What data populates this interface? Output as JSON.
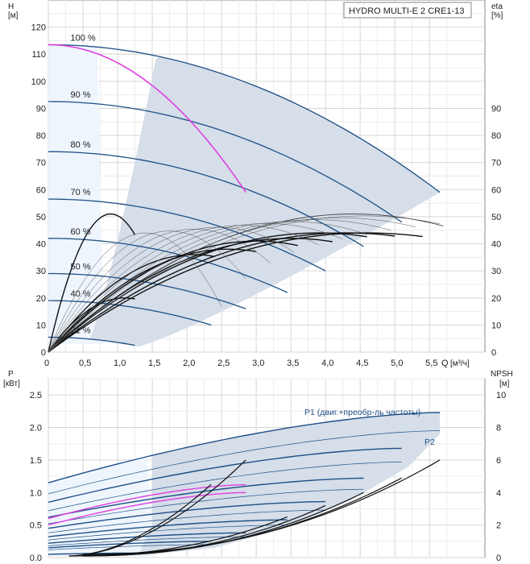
{
  "chart_data": [
    {
      "type": "line",
      "title": "HYDRO MULTI-E 2 CRE1-13",
      "ylabel": "H",
      "ylabel_unit": "[м]",
      "y2label": "eta",
      "y2label_unit": "[%]",
      "xlabel": "Q",
      "xlabel_unit": "[м³/ч]",
      "xlim": [
        0,
        6.3
      ],
      "ylim": [
        0,
        130
      ],
      "x_ticks": [
        0,
        0.5,
        1.0,
        1.5,
        2.0,
        2.5,
        3.0,
        3.5,
        4.0,
        4.5,
        5.0,
        5.5
      ],
      "x_tick_labels": [
        "0",
        "0,5",
        "1,0",
        "1,5",
        "2,0",
        "2,5",
        "3,0",
        "3,5",
        "4,0",
        "4,5",
        "5,0",
        "5,5"
      ],
      "y_ticks": [
        0,
        10,
        20,
        30,
        40,
        50,
        60,
        70,
        80,
        90,
        100,
        110,
        120
      ],
      "y_tick_labels": [
        "0",
        "10",
        "20",
        "30",
        "40",
        "50",
        "60",
        "70",
        "80",
        "90",
        "100",
        "110",
        "120"
      ],
      "y2_ticks": [
        0,
        10,
        20,
        30,
        40,
        50,
        60,
        70,
        80,
        90
      ],
      "y2_tick_labels": [
        "0",
        "10",
        "20",
        "30",
        "40",
        "50",
        "60",
        "70",
        "80",
        "90"
      ],
      "grid": true,
      "speed_curves": [
        {
          "label": "100 %",
          "h0": 113.5,
          "qmax": 5.65,
          "hend": 59
        },
        {
          "label": "90 %",
          "h0": 92.5,
          "qmax": 5.1,
          "hend": 48
        },
        {
          "label": "80 %",
          "h0": 74,
          "qmax": 4.55,
          "hend": 39
        },
        {
          "label": "70 %",
          "h0": 56.5,
          "qmax": 4.0,
          "hend": 30
        },
        {
          "label": "60 %",
          "h0": 42,
          "qmax": 3.45,
          "hend": 22
        },
        {
          "label": "50 %",
          "h0": 29,
          "qmax": 2.85,
          "hend": 16
        },
        {
          "label": "40 %",
          "h0": 19,
          "qmax": 2.35,
          "hend": 10
        },
        {
          "label": "21 %",
          "h0": 5.5,
          "qmax": 1.25,
          "hend": 2.5
        }
      ],
      "duty_curve": {
        "h0": 113.5,
        "qmax": 2.85,
        "hend": 59
      },
      "efficiency_curves": [
        {
          "qmax": 1.25,
          "peak": 51,
          "qpeak": 0.9
        },
        {
          "qmax": 1.25,
          "peak": 20,
          "qpeak": 1.1
        },
        {
          "qmax": 5.7,
          "peak": 51,
          "qpeak": 4.4
        },
        {
          "qmax": 5.4,
          "peak": 44,
          "qpeak": 4.6
        },
        {
          "qmax": 5.0,
          "peak": 44,
          "qpeak": 4.3
        },
        {
          "qmax": 4.6,
          "peak": 44,
          "qpeak": 3.9
        },
        {
          "qmax": 4.1,
          "peak": 42,
          "qpeak": 3.5
        },
        {
          "qmax": 3.6,
          "peak": 41,
          "qpeak": 3.0
        },
        {
          "qmax": 3.0,
          "peak": 38,
          "qpeak": 2.6
        },
        {
          "qmax": 2.4,
          "peak": 36,
          "qpeak": 2.1
        }
      ]
    },
    {
      "type": "line",
      "ylabel": "P",
      "ylabel_unit": "[кВт]",
      "y2label": "NPSH",
      "y2label_unit": "[м]",
      "xlim": [
        0,
        6.3
      ],
      "ylim": [
        0,
        2.75
      ],
      "y2lim": [
        0,
        11
      ],
      "y_ticks": [
        0,
        0.5,
        1.0,
        1.5,
        2.0,
        2.5
      ],
      "y_tick_labels": [
        "0.0",
        "0.5",
        "1.0",
        "1.5",
        "2.0",
        "2.5"
      ],
      "y2_ticks": [
        0,
        2,
        4,
        6,
        8,
        10
      ],
      "y2_tick_labels": [
        "0",
        "2",
        "4",
        "6",
        "8",
        "10"
      ],
      "grid": true,
      "annotations": [
        "P1 (двиг.+преобр-ль частоты)",
        "P2"
      ],
      "power_curves": [
        {
          "p0": 1.15,
          "pend": 2.23,
          "qmax": 5.65
        },
        {
          "p0": 0.98,
          "pend": 1.95,
          "qmax": 5.65
        },
        {
          "p0": 0.85,
          "pend": 1.68,
          "qmax": 5.1
        },
        {
          "p0": 0.72,
          "pend": 1.47,
          "qmax": 5.1
        },
        {
          "p0": 0.62,
          "pend": 1.22,
          "qmax": 4.55
        },
        {
          "p0": 0.52,
          "pend": 1.05,
          "qmax": 4.55
        },
        {
          "p0": 0.45,
          "pend": 0.86,
          "qmax": 4.0
        },
        {
          "p0": 0.38,
          "pend": 0.73,
          "qmax": 4.0
        },
        {
          "p0": 0.32,
          "pend": 0.58,
          "qmax": 3.45
        },
        {
          "p0": 0.27,
          "pend": 0.5,
          "qmax": 3.45
        },
        {
          "p0": 0.22,
          "pend": 0.38,
          "qmax": 2.85
        },
        {
          "p0": 0.18,
          "pend": 0.32,
          "qmax": 2.85
        },
        {
          "p0": 0.15,
          "pend": 0.25,
          "qmax": 2.35
        },
        {
          "p0": 0.12,
          "pend": 0.2,
          "qmax": 2.35
        },
        {
          "p0": 0.05,
          "pend": 0.07,
          "qmax": 1.25
        }
      ],
      "duty_power_curves": [
        {
          "p0": 0.6,
          "pend": 1.12,
          "qmax": 2.85
        },
        {
          "p0": 0.5,
          "pend": 1.0,
          "qmax": 2.85
        }
      ],
      "npsh_curves": [
        {
          "q0": 0.5,
          "qmax": 5.65,
          "n0": 0.2,
          "nend": 6.0
        },
        {
          "q0": 0.5,
          "qmax": 5.1,
          "n0": 0.15,
          "nend": 4.9
        },
        {
          "q0": 0.5,
          "qmax": 4.55,
          "n0": 0.1,
          "nend": 4.0
        },
        {
          "q0": 0.5,
          "qmax": 4.0,
          "n0": 0.1,
          "nend": 3.2
        },
        {
          "q0": 0.3,
          "qmax": 3.45,
          "n0": 0.1,
          "nend": 2.5
        },
        {
          "q0": 0.3,
          "qmax": 2.85,
          "n0": 0.1,
          "nend": 6.0
        },
        {
          "q0": 0.3,
          "qmax": 2.35,
          "n0": 0.1,
          "nend": 4.5
        }
      ]
    }
  ]
}
